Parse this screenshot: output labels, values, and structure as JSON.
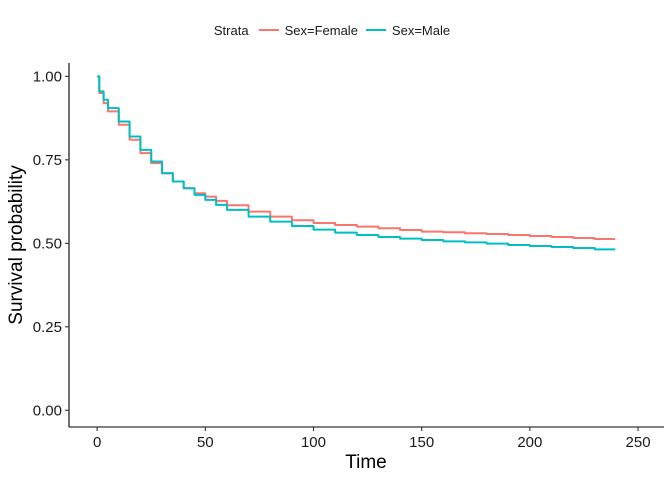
{
  "chart_data": {
    "type": "line",
    "title": "",
    "xlabel": "Time",
    "ylabel": "Survival probability",
    "xlim": [
      -13,
      262
    ],
    "ylim": [
      -0.05,
      1.04
    ],
    "xticks": [
      0,
      50,
      100,
      150,
      200,
      250
    ],
    "yticks": [
      0.0,
      0.25,
      0.5,
      0.75,
      1.0
    ],
    "xtick_labels": [
      "0",
      "50",
      "100",
      "150",
      "200",
      "250"
    ],
    "ytick_labels": [
      "0.00",
      "0.25",
      "0.50",
      "0.75",
      "1.00"
    ],
    "grid": false,
    "legend": {
      "title": "Strata",
      "position": "top",
      "entries": [
        "Sex=Female",
        "Sex=Male"
      ]
    },
    "series": [
      {
        "name": "Sex=Female",
        "color": "#F8766D",
        "x": [
          0,
          1,
          3,
          5,
          10,
          15,
          20,
          25,
          30,
          35,
          40,
          45,
          50,
          55,
          60,
          70,
          80,
          90,
          100,
          110,
          120,
          130,
          140,
          150,
          160,
          170,
          180,
          190,
          200,
          210,
          220,
          230,
          239
        ],
        "y": [
          1.0,
          0.95,
          0.92,
          0.895,
          0.855,
          0.81,
          0.77,
          0.74,
          0.71,
          0.685,
          0.665,
          0.65,
          0.64,
          0.627,
          0.614,
          0.595,
          0.58,
          0.569,
          0.561,
          0.555,
          0.55,
          0.545,
          0.54,
          0.535,
          0.533,
          0.53,
          0.528,
          0.525,
          0.522,
          0.519,
          0.516,
          0.513,
          0.51
        ]
      },
      {
        "name": "Sex=Male",
        "color": "#00BFC4",
        "x": [
          0,
          1,
          3,
          5,
          10,
          15,
          20,
          25,
          30,
          35,
          40,
          45,
          50,
          55,
          60,
          70,
          80,
          90,
          100,
          110,
          120,
          130,
          140,
          150,
          160,
          170,
          180,
          190,
          200,
          210,
          220,
          230,
          239
        ],
        "y": [
          1.0,
          0.955,
          0.93,
          0.905,
          0.865,
          0.82,
          0.78,
          0.745,
          0.71,
          0.685,
          0.665,
          0.645,
          0.63,
          0.615,
          0.6,
          0.58,
          0.565,
          0.552,
          0.541,
          0.532,
          0.525,
          0.519,
          0.514,
          0.51,
          0.506,
          0.503,
          0.499,
          0.495,
          0.492,
          0.489,
          0.486,
          0.482,
          0.479
        ]
      }
    ]
  }
}
